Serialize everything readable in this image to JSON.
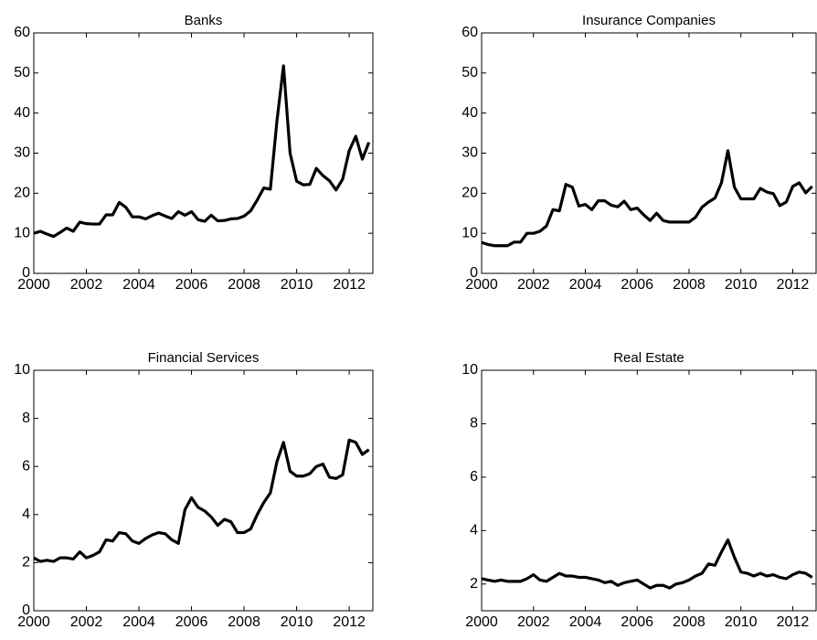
{
  "chart_data": [
    {
      "type": "line",
      "title": "Banks",
      "color": "#000000",
      "grid": false,
      "x": [
        2000,
        2000.25,
        2000.5,
        2000.75,
        2001,
        2001.25,
        2001.5,
        2001.75,
        2002,
        2002.25,
        2002.5,
        2002.75,
        2003,
        2003.25,
        2003.5,
        2003.75,
        2004,
        2004.25,
        2004.5,
        2004.75,
        2005,
        2005.25,
        2005.5,
        2005.75,
        2006,
        2006.25,
        2006.5,
        2006.75,
        2007,
        2007.25,
        2007.5,
        2007.75,
        2008,
        2008.25,
        2008.5,
        2008.75,
        2009,
        2009.25,
        2009.5,
        2009.75,
        2010,
        2010.25,
        2010.5,
        2010.75,
        2011,
        2011.25,
        2011.5,
        2011.75,
        2012,
        2012.25,
        2012.5,
        2012.75
      ],
      "values": [
        10,
        10.5,
        9.8,
        9.2,
        10.2,
        11.3,
        10.5,
        12.8,
        12.4,
        12.3,
        12.3,
        14.6,
        14.6,
        17.7,
        16.5,
        14.1,
        14.1,
        13.6,
        14.4,
        15,
        14.3,
        13.7,
        15.4,
        14.5,
        15.4,
        13.4,
        13,
        14.5,
        13.1,
        13.2,
        13.6,
        13.7,
        14.3,
        15.6,
        18.3,
        21.3,
        21,
        38,
        51.8,
        30,
        23,
        22.1,
        22.2,
        26.2,
        24.4,
        23.1,
        20.8,
        23.5,
        30.6,
        34.2,
        28.5,
        32.7
      ],
      "xlim": [
        2000,
        2012.9
      ],
      "xticks": [
        2000,
        2002,
        2004,
        2006,
        2008,
        2010,
        2012
      ],
      "ylim": [
        0,
        60
      ],
      "yticks": [
        0,
        10,
        20,
        30,
        40,
        50,
        60
      ]
    },
    {
      "type": "line",
      "title": "Insurance Companies",
      "color": "#000000",
      "grid": false,
      "x": [
        2000,
        2000.25,
        2000.5,
        2000.75,
        2001,
        2001.25,
        2001.5,
        2001.75,
        2002,
        2002.25,
        2002.5,
        2002.75,
        2003,
        2003.25,
        2003.5,
        2003.75,
        2004,
        2004.25,
        2004.5,
        2004.75,
        2005,
        2005.25,
        2005.5,
        2005.75,
        2006,
        2006.25,
        2006.5,
        2006.75,
        2007,
        2007.25,
        2007.5,
        2007.75,
        2008,
        2008.25,
        2008.5,
        2008.75,
        2009,
        2009.25,
        2009.5,
        2009.75,
        2010,
        2010.25,
        2010.5,
        2010.75,
        2011,
        2011.25,
        2011.5,
        2011.75,
        2012,
        2012.25,
        2012.5,
        2012.75
      ],
      "values": [
        7.7,
        7.2,
        6.9,
        6.9,
        6.9,
        7.8,
        7.8,
        10,
        10,
        10.5,
        11.8,
        15.9,
        15.6,
        22.2,
        21.5,
        16.8,
        17.2,
        15.9,
        18.1,
        18.1,
        17,
        16.6,
        18,
        15.9,
        16.3,
        14.6,
        13.2,
        15,
        13.2,
        12.8,
        12.8,
        12.8,
        12.8,
        14,
        16.5,
        17.8,
        18.8,
        22.6,
        30.6,
        21.5,
        18.6,
        18.6,
        18.6,
        21.2,
        20.3,
        19.9,
        16.9,
        17.8,
        21.7,
        22.6,
        20.1,
        21.7
      ],
      "xlim": [
        2000,
        2012.9
      ],
      "xticks": [
        2000,
        2002,
        2004,
        2006,
        2008,
        2010,
        2012
      ],
      "ylim": [
        0,
        60
      ],
      "yticks": [
        0,
        10,
        20,
        30,
        40,
        50,
        60
      ]
    },
    {
      "type": "line",
      "title": "Financial Services",
      "color": "#000000",
      "grid": false,
      "x": [
        2000,
        2000.25,
        2000.5,
        2000.75,
        2001,
        2001.25,
        2001.5,
        2001.75,
        2002,
        2002.25,
        2002.5,
        2002.75,
        2003,
        2003.25,
        2003.5,
        2003.75,
        2004,
        2004.25,
        2004.5,
        2004.75,
        2005,
        2005.25,
        2005.5,
        2005.75,
        2006,
        2006.25,
        2006.5,
        2006.75,
        2007,
        2007.25,
        2007.5,
        2007.75,
        2008,
        2008.25,
        2008.5,
        2008.75,
        2009,
        2009.25,
        2009.5,
        2009.75,
        2010,
        2010.25,
        2010.5,
        2010.75,
        2011,
        2011.25,
        2011.5,
        2011.75,
        2012,
        2012.25,
        2012.5,
        2012.75
      ],
      "values": [
        2.2,
        2.05,
        2.1,
        2.05,
        2.2,
        2.2,
        2.15,
        2.45,
        2.2,
        2.3,
        2.45,
        2.95,
        2.9,
        3.25,
        3.2,
        2.9,
        2.8,
        3,
        3.15,
        3.25,
        3.2,
        2.95,
        2.8,
        4.2,
        4.7,
        4.3,
        4.15,
        3.9,
        3.55,
        3.8,
        3.7,
        3.25,
        3.25,
        3.4,
        4,
        4.5,
        4.9,
        6.2,
        7,
        5.8,
        5.6,
        5.6,
        5.7,
        6,
        6.1,
        5.55,
        5.5,
        5.65,
        7.1,
        7,
        6.5,
        6.7
      ],
      "xlim": [
        2000,
        2012.9
      ],
      "xticks": [
        2000,
        2002,
        2004,
        2006,
        2008,
        2010,
        2012
      ],
      "ylim": [
        0,
        10
      ],
      "yticks": [
        0,
        2,
        4,
        6,
        8,
        10
      ]
    },
    {
      "type": "line",
      "title": "Real Estate",
      "color": "#000000",
      "grid": false,
      "x": [
        2000,
        2000.25,
        2000.5,
        2000.75,
        2001,
        2001.25,
        2001.5,
        2001.75,
        2002,
        2002.25,
        2002.5,
        2002.75,
        2003,
        2003.25,
        2003.5,
        2003.75,
        2004,
        2004.25,
        2004.5,
        2004.75,
        2005,
        2005.25,
        2005.5,
        2005.75,
        2006,
        2006.25,
        2006.5,
        2006.75,
        2007,
        2007.25,
        2007.5,
        2007.75,
        2008,
        2008.25,
        2008.5,
        2008.75,
        2009,
        2009.25,
        2009.5,
        2009.75,
        2010,
        2010.25,
        2010.5,
        2010.75,
        2011,
        2011.25,
        2011.5,
        2011.75,
        2012,
        2012.25,
        2012.5,
        2012.75
      ],
      "values": [
        2.2,
        2.15,
        2.1,
        2.15,
        2.1,
        2.1,
        2.1,
        2.2,
        2.35,
        2.15,
        2.1,
        2.25,
        2.4,
        2.3,
        2.3,
        2.25,
        2.25,
        2.2,
        2.15,
        2.05,
        2.1,
        1.95,
        2.05,
        2.1,
        2.15,
        2,
        1.85,
        1.95,
        1.95,
        1.85,
        2,
        2.05,
        2.15,
        2.3,
        2.4,
        2.75,
        2.7,
        3.2,
        3.65,
        3,
        2.45,
        2.4,
        2.3,
        2.4,
        2.3,
        2.35,
        2.25,
        2.2,
        2.35,
        2.45,
        2.4,
        2.25
      ],
      "xlim": [
        2000,
        2012.9
      ],
      "xticks": [
        2000,
        2002,
        2004,
        2006,
        2008,
        2010,
        2012
      ],
      "ylim": [
        1,
        10
      ],
      "yticks": [
        2,
        4,
        6,
        8,
        10
      ]
    }
  ]
}
